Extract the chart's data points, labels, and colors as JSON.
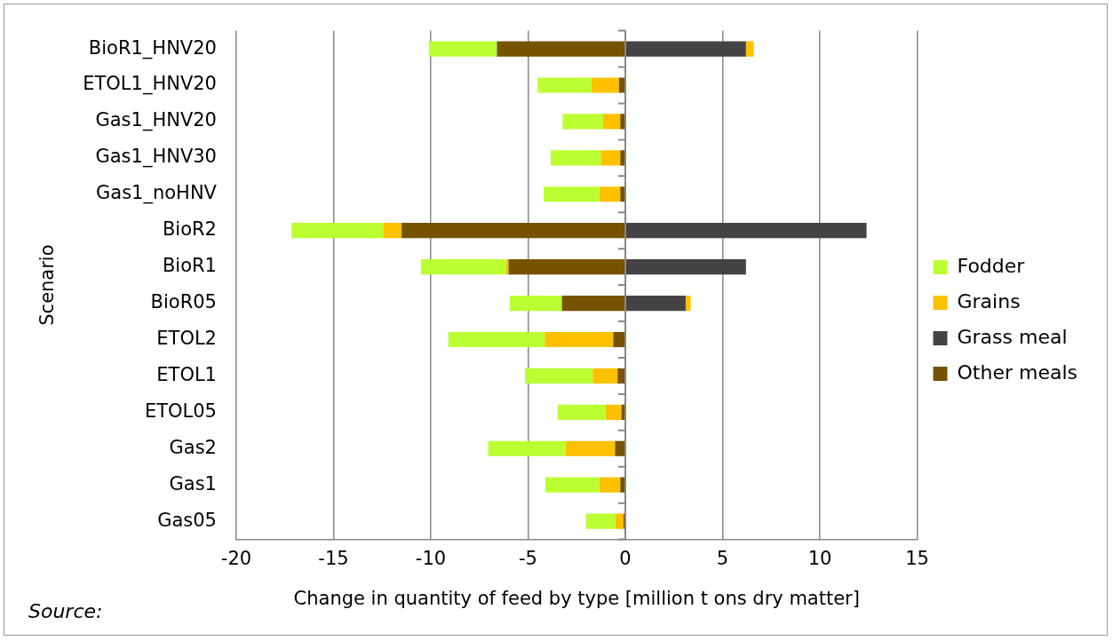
{
  "chart_data": {
    "type": "bar",
    "orientation": "horizontal",
    "stacked": true,
    "categories": [
      "BioR1_HNV20",
      "ETOL1_HNV20",
      "Gas1_HNV20",
      "Gas1_HNV30",
      "Gas1_noHNV",
      "BioR2",
      "BioR1",
      "BioR05",
      "ETOL2",
      "ETOL1",
      "ETOL05",
      "Gas2",
      "Gas1",
      "Gas05"
    ],
    "series": [
      {
        "name": "Other meals",
        "color": "#765300",
        "values": [
          -6.6,
          -0.33,
          -0.26,
          -0.26,
          -0.26,
          -11.5,
          -6.0,
          -3.26,
          -0.62,
          -0.4,
          -0.2,
          -0.53,
          -0.26,
          -0.09
        ]
      },
      {
        "name": "Grass meal",
        "color": "#444444",
        "values": [
          6.2,
          null,
          null,
          null,
          null,
          12.4,
          6.2,
          3.1,
          null,
          null,
          null,
          null,
          null,
          null
        ]
      },
      {
        "name": "Grains",
        "color": "#ffc000",
        "values": [
          0.4,
          -1.41,
          -0.88,
          -1.0,
          -1.08,
          -0.95,
          -0.13,
          0.26,
          -3.52,
          -1.28,
          -0.81,
          -2.55,
          -1.08,
          -0.42
        ]
      },
      {
        "name": "Fodder",
        "color": "#bbff33",
        "values": [
          -3.5,
          -2.77,
          -2.09,
          -2.58,
          -2.86,
          -4.71,
          -4.38,
          -2.69,
          -4.96,
          -3.48,
          -2.47,
          -3.97,
          -2.77,
          -1.52
        ]
      }
    ],
    "xlim": [
      -20,
      15
    ],
    "xticks": [
      -20,
      -15,
      -10,
      -5,
      0,
      5,
      10,
      15
    ],
    "xlabel": "Change in quantity of feed by type [million t ons dry matter]",
    "ylabel": "Scenario",
    "annotations": [
      "Source:"
    ],
    "grid": "x",
    "legend": "right"
  }
}
